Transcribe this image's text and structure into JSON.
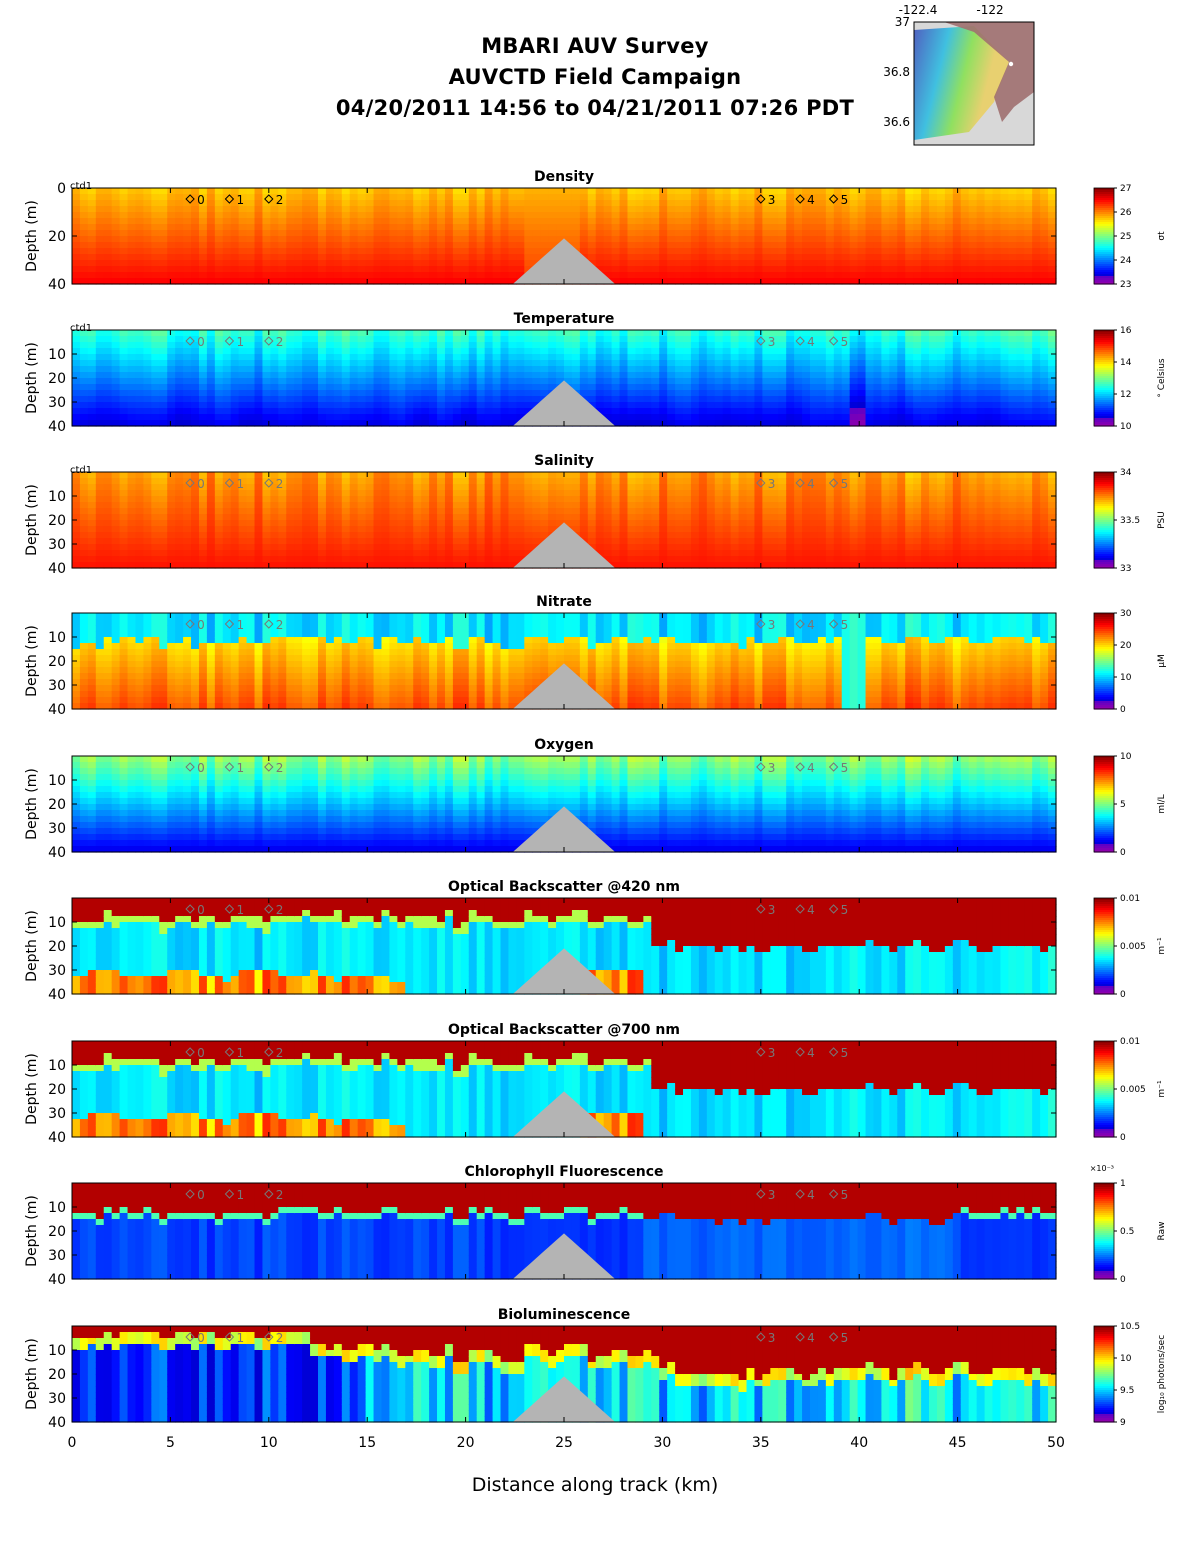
{
  "header": {
    "line1": "MBARI AUV Survey",
    "line2": "AUVCTD Field Campaign",
    "line3": "04/20/2011 14:56  to 04/21/2011 07:26 PDT"
  },
  "inset_map": {
    "x_ticks": [
      "-122.4",
      "-122"
    ],
    "y_ticks": [
      "37",
      "36.8",
      "36.6"
    ],
    "colors": {
      "ocean_shallow": "#e8d070",
      "ocean_deep": "#5060c0",
      "land": "#a07070",
      "nodata": "#d8d8d8"
    }
  },
  "chart_data": {
    "type": "heatmap",
    "xlabel": "Distance along track (km)",
    "xlim": [
      0,
      50
    ],
    "x_ticks": [
      0,
      5,
      10,
      15,
      20,
      25,
      30,
      35,
      40,
      45,
      50
    ],
    "ylabel": "Depth (m)",
    "ylim": [
      40,
      0
    ],
    "seafloor_peak_km": 25,
    "seafloor_peak_depth_m": 21,
    "station_markers": [
      {
        "label": "0",
        "km": 6
      },
      {
        "label": "1",
        "km": 8
      },
      {
        "label": "2",
        "km": 10
      },
      {
        "label": "3",
        "km": 35
      },
      {
        "label": "4",
        "km": 37
      },
      {
        "label": "5",
        "km": 38.7
      }
    ],
    "panels": [
      {
        "title": "Density",
        "ytick_labels": [
          "0",
          "20",
          "40"
        ],
        "cbar_ticks": [
          "27",
          "26",
          "25",
          "24",
          "23"
        ],
        "cbar_label": "σt",
        "corner_label": "ctd1",
        "style": "density"
      },
      {
        "title": "Temperature",
        "ytick_labels": [
          "10",
          "20",
          "30",
          "40"
        ],
        "cbar_ticks": [
          "16",
          "14",
          "12",
          "10"
        ],
        "cbar_label": "° Celsius",
        "corner_label": "ctd1",
        "style": "temperature"
      },
      {
        "title": "Salinity",
        "ytick_labels": [
          "10",
          "20",
          "30",
          "40"
        ],
        "cbar_ticks": [
          "34",
          "33.5",
          "33"
        ],
        "cbar_label": "PSU",
        "corner_label": "ctd1",
        "style": "salinity"
      },
      {
        "title": "Nitrate",
        "ytick_labels": [
          "10",
          "20",
          "30",
          "40"
        ],
        "cbar_ticks": [
          "30",
          "20",
          "10",
          "0"
        ],
        "cbar_label": "μM",
        "corner_label": "",
        "style": "nitrate"
      },
      {
        "title": "Oxygen",
        "ytick_labels": [
          "10",
          "20",
          "30",
          "40"
        ],
        "cbar_ticks": [
          "10",
          "5",
          "0"
        ],
        "cbar_label": "ml/L",
        "corner_label": "",
        "style": "oxygen"
      },
      {
        "title": "Optical Backscatter @420 nm",
        "ytick_labels": [
          "10",
          "20",
          "30",
          "40"
        ],
        "cbar_ticks": [
          "0.01",
          "0.005",
          "0"
        ],
        "cbar_label": "m⁻¹",
        "corner_label": "",
        "style": "bb420"
      },
      {
        "title": "Optical Backscatter @700 nm",
        "ytick_labels": [
          "10",
          "20",
          "30",
          "40"
        ],
        "cbar_ticks": [
          "0.01",
          "0.005",
          "0"
        ],
        "cbar_label": "m⁻¹",
        "corner_label": "",
        "style": "bb700"
      },
      {
        "title": "Chlorophyll Fluorescence",
        "ytick_labels": [
          "10",
          "20",
          "30",
          "40"
        ],
        "cbar_ticks": [
          "1",
          "0.5",
          "0"
        ],
        "cbar_label": "Raw",
        "cbar_exponent": "×10⁻³",
        "corner_label": "",
        "style": "chl"
      },
      {
        "title": "Bioluminescence",
        "ytick_labels": [
          "10",
          "20",
          "30",
          "40"
        ],
        "cbar_ticks": [
          "10.5",
          "10",
          "9.5",
          "9"
        ],
        "cbar_label": "log₁₀ photons/sec",
        "corner_label": "",
        "style": "biolum"
      }
    ]
  }
}
